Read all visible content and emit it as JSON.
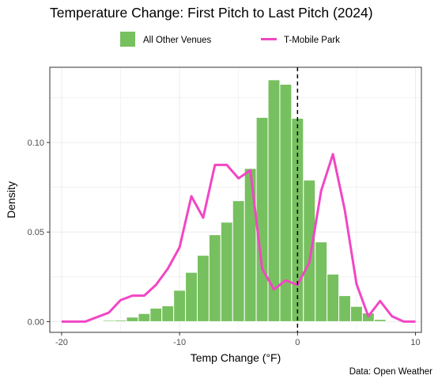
{
  "chart_data": {
    "type": "bar",
    "title": "Temperature Change: First Pitch to Last Pitch (2024)",
    "xlabel": "Temp Change (°F)",
    "ylabel": "Density",
    "caption": "Data: Open Weather",
    "xlim": [
      -21,
      10.5
    ],
    "ylim": [
      -0.006,
      0.142
    ],
    "xticks": [
      -20,
      -10,
      0,
      10
    ],
    "yticks": [
      0.0,
      0.05,
      0.1
    ],
    "ytick_labels": [
      "0.00",
      "0.05",
      "0.10"
    ],
    "grid": true,
    "legend_position": "top",
    "reference_line": {
      "x": 0,
      "style": "dashed"
    },
    "series": [
      {
        "name": "All Other Venues",
        "kind": "histogram",
        "color": "#77c05f",
        "bin_width": 1,
        "bin_centers": [
          -17,
          -16,
          -15,
          -14,
          -13,
          -12,
          -11,
          -10,
          -9,
          -8,
          -7,
          -6,
          -5,
          -4,
          -3,
          -2,
          -1,
          0,
          1,
          2,
          3,
          4,
          5,
          6,
          7
        ],
        "values": [
          0.0003,
          0.0007,
          0.0008,
          0.0025,
          0.0045,
          0.0075,
          0.0088,
          0.0175,
          0.0275,
          0.037,
          0.0485,
          0.0555,
          0.0675,
          0.0855,
          0.114,
          0.135,
          0.1325,
          0.1135,
          0.079,
          0.0445,
          0.0265,
          0.0145,
          0.0085,
          0.0048,
          0.0012
        ]
      },
      {
        "name": "T-Mobile Park",
        "kind": "line",
        "color": "#f246c4",
        "x": [
          -20,
          -18,
          -16,
          -15,
          -14,
          -13,
          -12,
          -11,
          -10,
          -9,
          -8,
          -7,
          -6,
          -5,
          -4,
          -3,
          -2,
          -1,
          0,
          1,
          2,
          3,
          4,
          5,
          6,
          7,
          8,
          9,
          10
        ],
        "values": [
          0,
          0,
          0.005,
          0.012,
          0.0145,
          0.0145,
          0.0205,
          0.0295,
          0.0415,
          0.07,
          0.058,
          0.0875,
          0.0875,
          0.08,
          0.0845,
          0.0295,
          0.018,
          0.023,
          0.0205,
          0.033,
          0.073,
          0.0935,
          0.0625,
          0.021,
          0.003,
          0.0115,
          0.003,
          0,
          0
        ]
      }
    ]
  }
}
